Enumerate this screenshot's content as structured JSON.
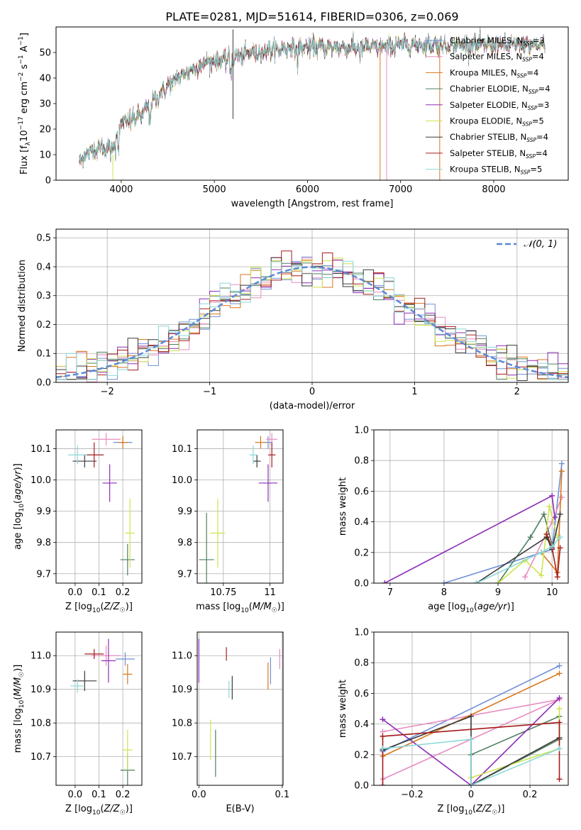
{
  "figure_title": "PLATE=0281, MJD=51614, FIBERID=0306, z=0.069",
  "colors": {
    "Chabrier MILES": "#6f8fd6",
    "Salpeter MILES": "#e88cc0",
    "Kroupa MILES": "#d9761c",
    "Chabrier ELODIE": "#4f7f5f",
    "Salpeter ELODIE": "#8e2db6",
    "Kroupa ELODIE": "#cde44f",
    "Chabrier STELIB": "#3a3a3a",
    "Salpeter STELIB": "#a51c1c",
    "Kroupa STELIB": "#8ad8d8"
  },
  "chart_data": [
    {
      "id": "spectrum",
      "type": "line",
      "xlabel": "wavelength [Angstrom, rest frame]",
      "ylabel": "Flux [f_λ 10^-17 erg cm^-2 s^-1 A^-1]",
      "xlim": [
        3300,
        8800
      ],
      "ylim": [
        0,
        60
      ],
      "xticks": [
        4000,
        5000,
        6000,
        7000,
        8000
      ],
      "yticks": [
        0,
        10,
        20,
        30,
        40,
        50
      ],
      "grid": false,
      "legend_position": "top-right",
      "continuum": {
        "x": [
          3550,
          3700,
          3800,
          3900,
          3950,
          4000,
          4100,
          4200,
          4300,
          4400,
          4500,
          4600,
          4700,
          4800,
          4900,
          5000,
          5100,
          5200,
          5300,
          5400,
          5500,
          5600,
          5700,
          5800,
          5900,
          6000,
          6200,
          6400,
          6600,
          6800,
          7000,
          7200,
          7400,
          7600,
          7800,
          8000,
          8200,
          8400,
          8550
        ],
        "y": [
          8,
          12,
          13,
          12,
          18,
          22,
          24,
          25,
          29,
          33,
          37,
          40,
          42,
          44,
          46,
          47,
          47,
          48,
          49,
          50,
          50,
          51,
          51,
          52,
          52,
          52,
          52,
          52,
          52,
          52,
          53,
          53,
          53,
          53,
          53,
          53,
          53,
          53,
          53
        ]
      },
      "series": [
        {
          "name": "Chabrier MILES",
          "legend": "Chabrier MILES, N_SSP=3"
        },
        {
          "name": "Salpeter MILES",
          "legend": "Salpeter MILES, N_SSP=4"
        },
        {
          "name": "Kroupa MILES",
          "legend": "Kroupa MILES, N_SSP=4"
        },
        {
          "name": "Chabrier ELODIE",
          "legend": "Chabrier ELODIE, N_SSP=4"
        },
        {
          "name": "Salpeter ELODIE",
          "legend": "Salpeter ELODIE, N_SSP=3"
        },
        {
          "name": "Kroupa ELODIE",
          "legend": "Kroupa ELODIE, N_SSP=5"
        },
        {
          "name": "Chabrier STELIB",
          "legend": "Chabrier STELIB, N_SSP=4"
        },
        {
          "name": "Salpeter STELIB",
          "legend": "Salpeter STELIB, N_SSP=4"
        },
        {
          "name": "Kroupa STELIB",
          "legend": "Kroupa STELIB, N_SSP=5"
        }
      ],
      "spikes": [
        {
          "x": 5200,
          "y0": 24,
          "y1": 59,
          "series": "Chabrier STELIB"
        },
        {
          "x": 6780,
          "y0": 0,
          "y1": 52,
          "series": "Kroupa MILES"
        },
        {
          "x": 6850,
          "y0": 0,
          "y1": 52,
          "series": "Salpeter MILES"
        },
        {
          "x": 7420,
          "y0": 0,
          "y1": 52,
          "series": "Kroupa MILES"
        },
        {
          "x": 3910,
          "y0": 0,
          "y1": 10,
          "series": "Kroupa ELODIE"
        }
      ]
    },
    {
      "id": "residual_histogram",
      "type": "line",
      "xlabel": "(data-model)/error",
      "ylabel": "Normed distribution",
      "xlim": [
        -2.5,
        2.5
      ],
      "ylim": [
        0,
        0.53
      ],
      "xticks": [
        -2,
        -1,
        0,
        1,
        2
      ],
      "yticks": [
        0.0,
        0.1,
        0.2,
        0.3,
        0.4,
        0.5
      ],
      "grid": true,
      "legend_position": "top-right",
      "reference_label": "N(0,1)",
      "reference_color": "#5b8bd6",
      "bin_width": 0.1
    },
    {
      "id": "age_vs_Z",
      "type": "scatter",
      "xlabel": "Z [log10(Z/Z☉)]",
      "ylabel": "age [log10(age/yr)]",
      "xlim": [
        -0.08,
        0.28
      ],
      "ylim": [
        9.67,
        10.16
      ],
      "xticks": [
        0.0,
        0.1,
        0.2
      ],
      "yticks": [
        9.7,
        9.8,
        9.9,
        10.0,
        10.1
      ],
      "grid": true,
      "points": [
        {
          "series": "Chabrier MILES",
          "x": 0.2,
          "y": 10.12,
          "xerr": 0.04,
          "yerr": 0.02
        },
        {
          "series": "Salpeter MILES",
          "x": 0.13,
          "y": 10.13,
          "xerr": 0.06,
          "yerr": 0.02
        },
        {
          "series": "Kroupa MILES",
          "x": 0.2,
          "y": 10.12,
          "xerr": 0.02,
          "yerr": 0.02
        },
        {
          "series": "Chabrier ELODIE",
          "x": 0.22,
          "y": 9.745,
          "xerr": 0.03,
          "yerr": 0.05
        },
        {
          "series": "Salpeter ELODIE",
          "x": 0.145,
          "y": 9.99,
          "xerr": 0.03,
          "yerr": 0.06
        },
        {
          "series": "Kroupa ELODIE",
          "x": 0.23,
          "y": 9.83,
          "xerr": 0.02,
          "yerr": 0.11
        },
        {
          "series": "Chabrier STELIB",
          "x": 0.04,
          "y": 10.06,
          "xerr": 0.05,
          "yerr": 0.02
        },
        {
          "series": "Salpeter STELIB",
          "x": 0.08,
          "y": 10.08,
          "xerr": 0.04,
          "yerr": 0.04
        },
        {
          "series": "Kroupa STELIB",
          "x": 0.01,
          "y": 10.08,
          "xerr": 0.04,
          "yerr": 0.03
        }
      ]
    },
    {
      "id": "age_vs_mass",
      "type": "scatter",
      "xlabel": "mass [log10(M/M☉)]",
      "ylabel": "",
      "xlim": [
        10.61,
        11.07
      ],
      "ylim": [
        9.67,
        10.16
      ],
      "xticks": [
        10.75,
        11.0
      ],
      "yticks": [
        9.7,
        9.8,
        9.9,
        10.0,
        10.1
      ],
      "grid": true,
      "points": [
        {
          "series": "Chabrier MILES",
          "x": 10.99,
          "y": 10.12,
          "xerr": 0.02,
          "yerr": 0.02
        },
        {
          "series": "Salpeter MILES",
          "x": 11.01,
          "y": 10.13,
          "xerr": 0.03,
          "yerr": 0.02
        },
        {
          "series": "Kroupa MILES",
          "x": 10.95,
          "y": 10.12,
          "xerr": 0.03,
          "yerr": 0.02
        },
        {
          "series": "Chabrier ELODIE",
          "x": 10.66,
          "y": 9.745,
          "xerr": 0.04,
          "yerr": 0.15
        },
        {
          "series": "Salpeter ELODIE",
          "x": 10.99,
          "y": 9.99,
          "xerr": 0.05,
          "yerr": 0.06
        },
        {
          "series": "Kroupa ELODIE",
          "x": 10.72,
          "y": 9.83,
          "xerr": 0.04,
          "yerr": 0.11
        },
        {
          "series": "Chabrier STELIB",
          "x": 10.93,
          "y": 10.06,
          "xerr": 0.02,
          "yerr": 0.02
        },
        {
          "series": "Salpeter STELIB",
          "x": 11.01,
          "y": 10.08,
          "xerr": 0.02,
          "yerr": 0.04
        },
        {
          "series": "Kroupa STELIB",
          "x": 10.91,
          "y": 10.08,
          "xerr": 0.02,
          "yerr": 0.03
        }
      ]
    },
    {
      "id": "massweight_vs_age",
      "type": "line",
      "xlabel": "age [log10(age/yr)]",
      "ylabel": "mass weight",
      "xlim": [
        6.7,
        10.3
      ],
      "ylim": [
        0.0,
        1.0
      ],
      "xticks": [
        7,
        8,
        9,
        10
      ],
      "yticks": [
        0.0,
        0.2,
        0.4,
        0.6,
        0.8,
        1.0
      ],
      "grid": true,
      "series": [
        {
          "name": "Chabrier MILES",
          "x": [
            8.0,
            10.0,
            10.18
          ],
          "y": [
            0.0,
            0.22,
            0.78
          ]
        },
        {
          "name": "Salpeter MILES",
          "x": [
            9.5,
            10.0,
            10.18
          ],
          "y": [
            0.04,
            0.4,
            0.56
          ]
        },
        {
          "name": "Kroupa MILES",
          "x": [
            9.8,
            10.1,
            10.18
          ],
          "y": [
            0.2,
            0.07,
            0.73
          ]
        },
        {
          "name": "Chabrier ELODIE",
          "x": [
            9.0,
            9.6,
            9.85,
            10.0
          ],
          "y": [
            0.0,
            0.3,
            0.45,
            0.25
          ]
        },
        {
          "name": "Salpeter ELODIE",
          "x": [
            6.9,
            10.0,
            10.05
          ],
          "y": [
            0.0,
            0.57,
            0.43
          ]
        },
        {
          "name": "Kroupa ELODIE",
          "x": [
            9.0,
            9.5,
            9.8,
            9.95,
            10.1
          ],
          "y": [
            0.0,
            0.15,
            0.05,
            0.5,
            0.3
          ]
        },
        {
          "name": "Chabrier STELIB",
          "x": [
            8.6,
            9.9,
            10.0,
            10.15
          ],
          "y": [
            0.0,
            0.3,
            0.22,
            0.45
          ]
        },
        {
          "name": "Salpeter STELIB",
          "x": [
            9.9,
            10.0,
            10.1,
            10.15
          ],
          "y": [
            0.32,
            0.23,
            0.04,
            0.23
          ]
        },
        {
          "name": "Kroupa STELIB",
          "x": [
            8.6,
            9.8,
            10.0,
            10.15
          ],
          "y": [
            0.0,
            0.2,
            0.24,
            0.3
          ]
        }
      ]
    },
    {
      "id": "mass_vs_Z",
      "type": "scatter",
      "xlabel": "Z [log10(Z/Z☉)]",
      "ylabel": "mass [log10(M/M☉)]",
      "xlim": [
        -0.08,
        0.28
      ],
      "ylim": [
        10.615,
        11.07
      ],
      "xticks": [
        0.0,
        0.1,
        0.2
      ],
      "yticks": [
        10.7,
        10.8,
        10.9,
        11.0
      ],
      "grid": true,
      "points": [
        {
          "series": "Chabrier MILES",
          "x": 0.21,
          "y": 10.99,
          "xerr": 0.04,
          "yerr": 0.02
        },
        {
          "series": "Salpeter MILES",
          "x": 0.13,
          "y": 11.0,
          "xerr": 0.06,
          "yerr": 0.03
        },
        {
          "series": "Kroupa MILES",
          "x": 0.22,
          "y": 10.945,
          "xerr": 0.02,
          "yerr": 0.03
        },
        {
          "series": "Chabrier ELODIE",
          "x": 0.22,
          "y": 10.66,
          "xerr": 0.03,
          "yerr": 0.05
        },
        {
          "series": "Salpeter ELODIE",
          "x": 0.14,
          "y": 10.985,
          "xerr": 0.03,
          "yerr": 0.065
        },
        {
          "series": "Kroupa ELODIE",
          "x": 0.22,
          "y": 10.72,
          "xerr": 0.02,
          "yerr": 0.06
        },
        {
          "series": "Chabrier STELIB",
          "x": 0.04,
          "y": 10.925,
          "xerr": 0.05,
          "yerr": 0.03
        },
        {
          "series": "Salpeter STELIB",
          "x": 0.08,
          "y": 11.005,
          "xerr": 0.04,
          "yerr": 0.015
        },
        {
          "series": "Kroupa STELIB",
          "x": 0.01,
          "y": 10.91,
          "xerr": 0.03,
          "yerr": 0.02
        }
      ]
    },
    {
      "id": "mass_vs_EBV",
      "type": "scatter",
      "xlabel": "E(B-V)",
      "ylabel": "",
      "xlim": [
        -0.002,
        0.101
      ],
      "ylim": [
        10.615,
        11.07
      ],
      "xticks": [
        0.0,
        0.1
      ],
      "yticks": [
        10.7,
        10.8,
        10.9,
        11.0
      ],
      "grid": true,
      "points": [
        {
          "series": "Chabrier MILES",
          "x": 0.086,
          "y": 10.955,
          "xerr": 0,
          "yerr": 0.04
        },
        {
          "series": "Salpeter MILES",
          "x": 0.097,
          "y": 10.99,
          "xerr": 0,
          "yerr": 0.03
        },
        {
          "series": "Kroupa MILES",
          "x": 0.083,
          "y": 10.94,
          "xerr": 0,
          "yerr": 0.04
        },
        {
          "series": "Chabrier ELODIE",
          "x": 0.02,
          "y": 10.71,
          "xerr": 0,
          "yerr": 0.07
        },
        {
          "series": "Salpeter ELODIE",
          "x": 0.0,
          "y": 10.985,
          "xerr": 0,
          "yerr": 0.065
        },
        {
          "series": "Kroupa ELODIE",
          "x": 0.014,
          "y": 10.75,
          "xerr": 0,
          "yerr": 0.06
        },
        {
          "series": "Chabrier STELIB",
          "x": 0.04,
          "y": 10.905,
          "xerr": 0,
          "yerr": 0.035
        },
        {
          "series": "Salpeter STELIB",
          "x": 0.033,
          "y": 11.005,
          "xerr": 0,
          "yerr": 0.02
        },
        {
          "series": "Kroupa STELIB",
          "x": 0.036,
          "y": 10.9,
          "xerr": 0,
          "yerr": 0.025
        }
      ]
    },
    {
      "id": "massweight_vs_Z",
      "type": "line",
      "xlabel": "Z [log10(Z/Z☉)]",
      "ylabel": "mass weight",
      "xlim": [
        -0.33,
        0.33
      ],
      "ylim": [
        0.0,
        1.0
      ],
      "xticks": [
        -0.2,
        0.0,
        0.2
      ],
      "yticks": [
        0.0,
        0.2,
        0.4,
        0.6,
        0.8,
        1.0
      ],
      "grid": true,
      "series": [
        {
          "name": "Chabrier MILES",
          "x": [
            -0.3,
            0.3
          ],
          "y": [
            0.22,
            0.78
          ]
        },
        {
          "name": "Salpeter MILES",
          "x": [
            -0.3,
            0.3,
            -0.3
          ],
          "y": [
            0.04,
            0.56,
            0.35
          ]
        },
        {
          "name": "Kroupa MILES",
          "x": [
            -0.3,
            0.3
          ],
          "y": [
            0.19,
            0.73
          ]
        },
        {
          "name": "Chabrier ELODIE",
          "x": [
            0.0,
            0.3,
            0.3,
            0.0
          ],
          "y": [
            0.0,
            0.3,
            0.45,
            0.2
          ]
        },
        {
          "name": "Salpeter ELODIE",
          "x": [
            -0.3,
            0.0,
            0.3
          ],
          "y": [
            0.43,
            0.0,
            0.57
          ]
        },
        {
          "name": "Kroupa ELODIE",
          "x": [
            0.0,
            0.3,
            0.3
          ],
          "y": [
            0.05,
            0.24,
            0.5
          ]
        },
        {
          "name": "Chabrier STELIB",
          "x": [
            -0.3,
            0.0,
            0.0,
            0.3
          ],
          "y": [
            0.23,
            0.45,
            0.0,
            0.31
          ]
        },
        {
          "name": "Salpeter STELIB",
          "x": [
            -0.3,
            -0.3,
            0.3,
            0.3
          ],
          "y": [
            0.0,
            0.32,
            0.41,
            0.04
          ]
        },
        {
          "name": "Kroupa STELIB",
          "x": [
            -0.3,
            0.0,
            0.0,
            0.3
          ],
          "y": [
            0.24,
            0.3,
            0.0,
            0.24
          ]
        }
      ]
    }
  ]
}
